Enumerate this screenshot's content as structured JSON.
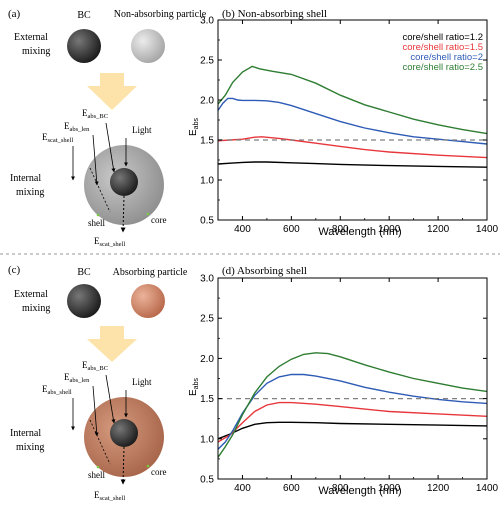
{
  "colors": {
    "black_series": "#000000",
    "red_series": "#e8373c",
    "blue_series": "#2e5bb5",
    "green_series": "#2e7d32",
    "reference_line": "#808080",
    "arrow_fill": "#fde3aa",
    "bc_dark": "#2b2b2b",
    "nonabs_particle": "#b9b9b9",
    "abs_particle": "#c97f61",
    "shell_gray": "#9e9e9e",
    "shell_brown": "#b97a5c",
    "divider": "#9a9a9a"
  },
  "panel_a": {
    "label": "(a)",
    "bc_label": "BC",
    "particle_label": "Non-absorbing particle",
    "external_label": [
      "External",
      "mixing"
    ],
    "internal_label": [
      "Internal",
      "mixing"
    ],
    "eabs_len": {
      "main": "E",
      "sub": "abs_len"
    },
    "eabs_bc": {
      "main": "E",
      "sub": "abs_BC"
    },
    "escat_shell_top": {
      "main": "E",
      "sub": "scat_shell"
    },
    "escat_shell_bottom": {
      "main": "E",
      "sub": "scat_shell"
    },
    "light_label": "Light",
    "shell_label": "shell",
    "core_label": "core"
  },
  "panel_c": {
    "label": "(c)",
    "bc_label": "BC",
    "particle_label": "Absorbing particle",
    "external_label": [
      "External",
      "mixing"
    ],
    "internal_label": [
      "Internal",
      "mixing"
    ],
    "eabs_len": {
      "main": "E",
      "sub": "abs_len"
    },
    "eabs_bc": {
      "main": "E",
      "sub": "abs_BC"
    },
    "eabs_shell": {
      "main": "E",
      "sub": "abs_shell"
    },
    "escat_shell_bottom": {
      "main": "E",
      "sub": "scat_shell"
    },
    "light_label": "Light",
    "shell_label": "shell",
    "core_label": "core"
  },
  "chart_data": [
    {
      "type": "line",
      "title": "(b) Non-absorbing shell",
      "xlabel": "Wavelength (nm)",
      "ylabel": {
        "main": "E",
        "sub": "abs"
      },
      "xlim": [
        300,
        1400
      ],
      "ylim": [
        0.5,
        3.0
      ],
      "xticks": [
        400,
        600,
        800,
        1000,
        1200,
        1400
      ],
      "yticks": [
        0.5,
        1.0,
        1.5,
        2.0,
        2.5,
        3.0
      ],
      "reference_y": 1.5,
      "legend_position": "top-right",
      "series": [
        {
          "name": "core/shell ratio=1.2",
          "color": "#000000",
          "points": [
            [
              300,
              1.2
            ],
            [
              350,
              1.21
            ],
            [
              400,
              1.22
            ],
            [
              450,
              1.225
            ],
            [
              500,
              1.225
            ],
            [
              600,
              1.215
            ],
            [
              700,
              1.205
            ],
            [
              800,
              1.195
            ],
            [
              1000,
              1.18
            ],
            [
              1200,
              1.17
            ],
            [
              1400,
              1.16
            ]
          ]
        },
        {
          "name": "core/shell ratio=1.5",
          "color": "#e8373c",
          "points": [
            [
              300,
              1.49
            ],
            [
              350,
              1.5
            ],
            [
              400,
              1.51
            ],
            [
              450,
              1.535
            ],
            [
              480,
              1.54
            ],
            [
              550,
              1.52
            ],
            [
              600,
              1.5
            ],
            [
              700,
              1.46
            ],
            [
              800,
              1.42
            ],
            [
              900,
              1.38
            ],
            [
              1000,
              1.35
            ],
            [
              1200,
              1.31
            ],
            [
              1400,
              1.28
            ]
          ]
        },
        {
          "name": "core/shell ratio=2",
          "color": "#2e5bb5",
          "points": [
            [
              300,
              1.87
            ],
            [
              320,
              1.96
            ],
            [
              340,
              2.02
            ],
            [
              360,
              2.02
            ],
            [
              380,
              2.0
            ],
            [
              400,
              1.995
            ],
            [
              450,
              1.995
            ],
            [
              500,
              1.99
            ],
            [
              550,
              1.97
            ],
            [
              600,
              1.93
            ],
            [
              700,
              1.83
            ],
            [
              800,
              1.73
            ],
            [
              900,
              1.65
            ],
            [
              1000,
              1.59
            ],
            [
              1100,
              1.54
            ],
            [
              1200,
              1.51
            ],
            [
              1300,
              1.48
            ],
            [
              1400,
              1.45
            ]
          ]
        },
        {
          "name": "core/shell ratio=2.5",
          "color": "#2e7d32",
          "points": [
            [
              300,
              1.95
            ],
            [
              330,
              2.06
            ],
            [
              360,
              2.22
            ],
            [
              400,
              2.35
            ],
            [
              440,
              2.42
            ],
            [
              470,
              2.39
            ],
            [
              520,
              2.36
            ],
            [
              600,
              2.32
            ],
            [
              700,
              2.21
            ],
            [
              800,
              2.06
            ],
            [
              900,
              1.94
            ],
            [
              1000,
              1.85
            ],
            [
              1100,
              1.76
            ],
            [
              1200,
              1.69
            ],
            [
              1300,
              1.63
            ],
            [
              1400,
              1.58
            ]
          ]
        }
      ]
    },
    {
      "type": "line",
      "title": "(d) Absorbing shell",
      "xlabel": "Wavelength (nm)",
      "ylabel": {
        "main": "E",
        "sub": "abs"
      },
      "xlim": [
        300,
        1400
      ],
      "ylim": [
        0.5,
        3.0
      ],
      "xticks": [
        400,
        600,
        800,
        1000,
        1200,
        1400
      ],
      "yticks": [
        0.5,
        1.0,
        1.5,
        2.0,
        2.5,
        3.0
      ],
      "reference_y": 1.5,
      "series": [
        {
          "name": "core/shell ratio=1.2",
          "color": "#000000",
          "points": [
            [
              300,
              1.0
            ],
            [
              350,
              1.06
            ],
            [
              400,
              1.13
            ],
            [
              450,
              1.18
            ],
            [
              500,
              1.2
            ],
            [
              550,
              1.205
            ],
            [
              600,
              1.205
            ],
            [
              700,
              1.2
            ],
            [
              800,
              1.19
            ],
            [
              1000,
              1.18
            ],
            [
              1200,
              1.17
            ],
            [
              1400,
              1.16
            ]
          ]
        },
        {
          "name": "core/shell ratio=1.5",
          "color": "#e8373c",
          "points": [
            [
              300,
              0.96
            ],
            [
              350,
              1.05
            ],
            [
              400,
              1.2
            ],
            [
              450,
              1.34
            ],
            [
              500,
              1.42
            ],
            [
              550,
              1.45
            ],
            [
              600,
              1.45
            ],
            [
              700,
              1.43
            ],
            [
              800,
              1.4
            ],
            [
              900,
              1.37
            ],
            [
              1000,
              1.34
            ],
            [
              1200,
              1.31
            ],
            [
              1400,
              1.28
            ]
          ]
        },
        {
          "name": "core/shell ratio=2",
          "color": "#2e5bb5",
          "points": [
            [
              300,
              0.87
            ],
            [
              330,
              0.96
            ],
            [
              360,
              1.1
            ],
            [
              400,
              1.32
            ],
            [
              450,
              1.54
            ],
            [
              500,
              1.69
            ],
            [
              550,
              1.77
            ],
            [
              600,
              1.8
            ],
            [
              650,
              1.8
            ],
            [
              700,
              1.78
            ],
            [
              800,
              1.72
            ],
            [
              900,
              1.64
            ],
            [
              1000,
              1.58
            ],
            [
              1100,
              1.53
            ],
            [
              1200,
              1.49
            ],
            [
              1300,
              1.46
            ],
            [
              1400,
              1.44
            ]
          ]
        },
        {
          "name": "core/shell ratio=2.5",
          "color": "#2e7d32",
          "points": [
            [
              300,
              0.77
            ],
            [
              330,
              0.9
            ],
            [
              360,
              1.05
            ],
            [
              400,
              1.3
            ],
            [
              450,
              1.57
            ],
            [
              500,
              1.77
            ],
            [
              550,
              1.9
            ],
            [
              600,
              1.99
            ],
            [
              650,
              2.05
            ],
            [
              700,
              2.07
            ],
            [
              750,
              2.06
            ],
            [
              800,
              2.02
            ],
            [
              900,
              1.92
            ],
            [
              1000,
              1.83
            ],
            [
              1100,
              1.75
            ],
            [
              1200,
              1.69
            ],
            [
              1300,
              1.63
            ],
            [
              1400,
              1.59
            ]
          ]
        }
      ]
    }
  ]
}
